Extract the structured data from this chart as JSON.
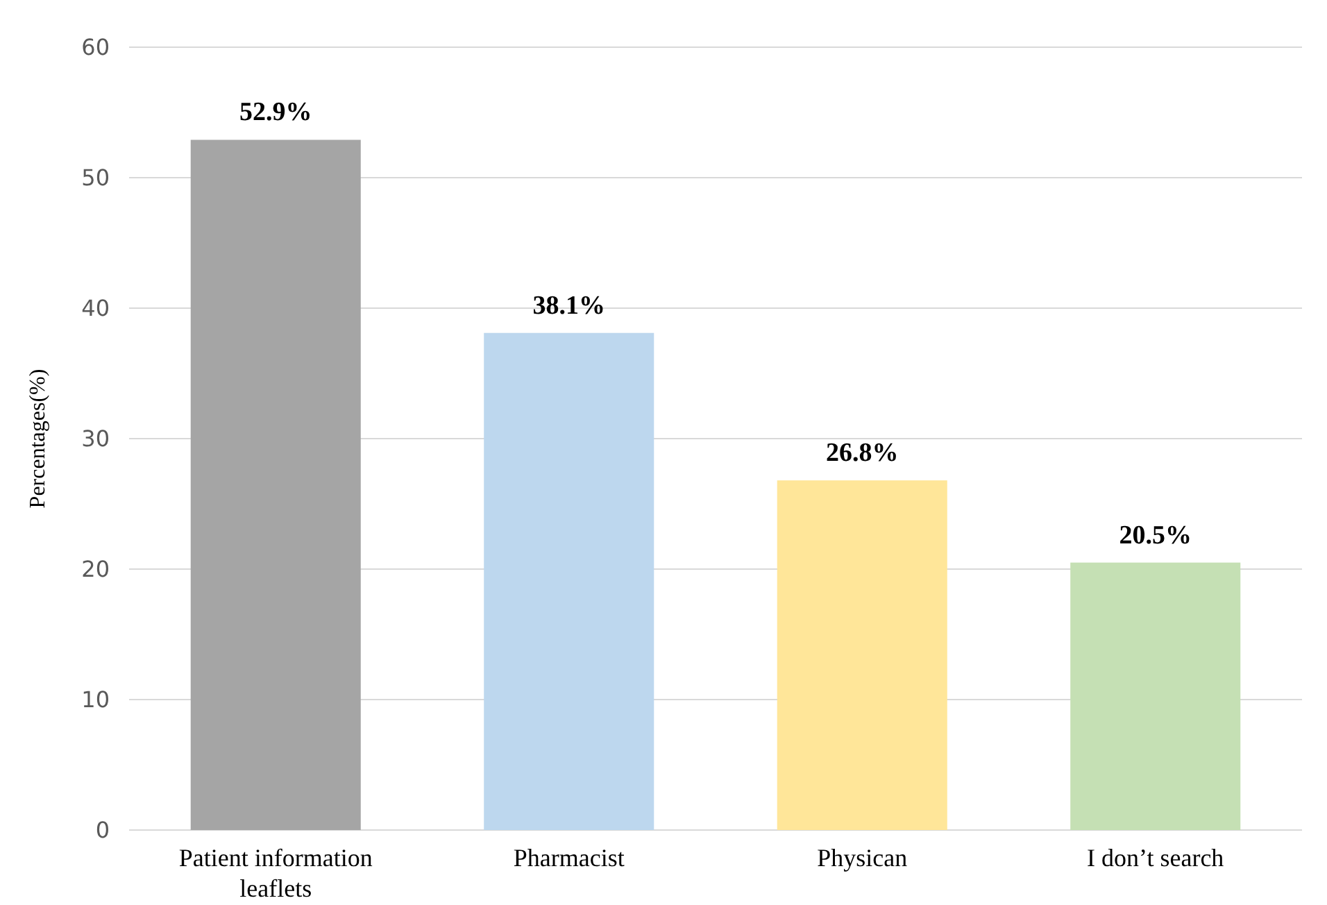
{
  "chart_data": {
    "type": "bar",
    "ylabel": "Percentages(%)",
    "categories": [
      "Patient information leaflets",
      "Pharmacist",
      "Physican",
      "I don’t search"
    ],
    "values": [
      52.9,
      38.1,
      26.8,
      20.5
    ],
    "colors": [
      "#a5a5a5",
      "#bdd7ee",
      "#ffe699",
      "#c5e0b4"
    ],
    "value_labels": [
      "52.9%",
      "38.1%",
      "26.8%",
      "20.5%"
    ],
    "ylim": [
      0,
      60
    ],
    "yticks": [
      0,
      10,
      20,
      30,
      40,
      50,
      60
    ],
    "grid": "y"
  }
}
